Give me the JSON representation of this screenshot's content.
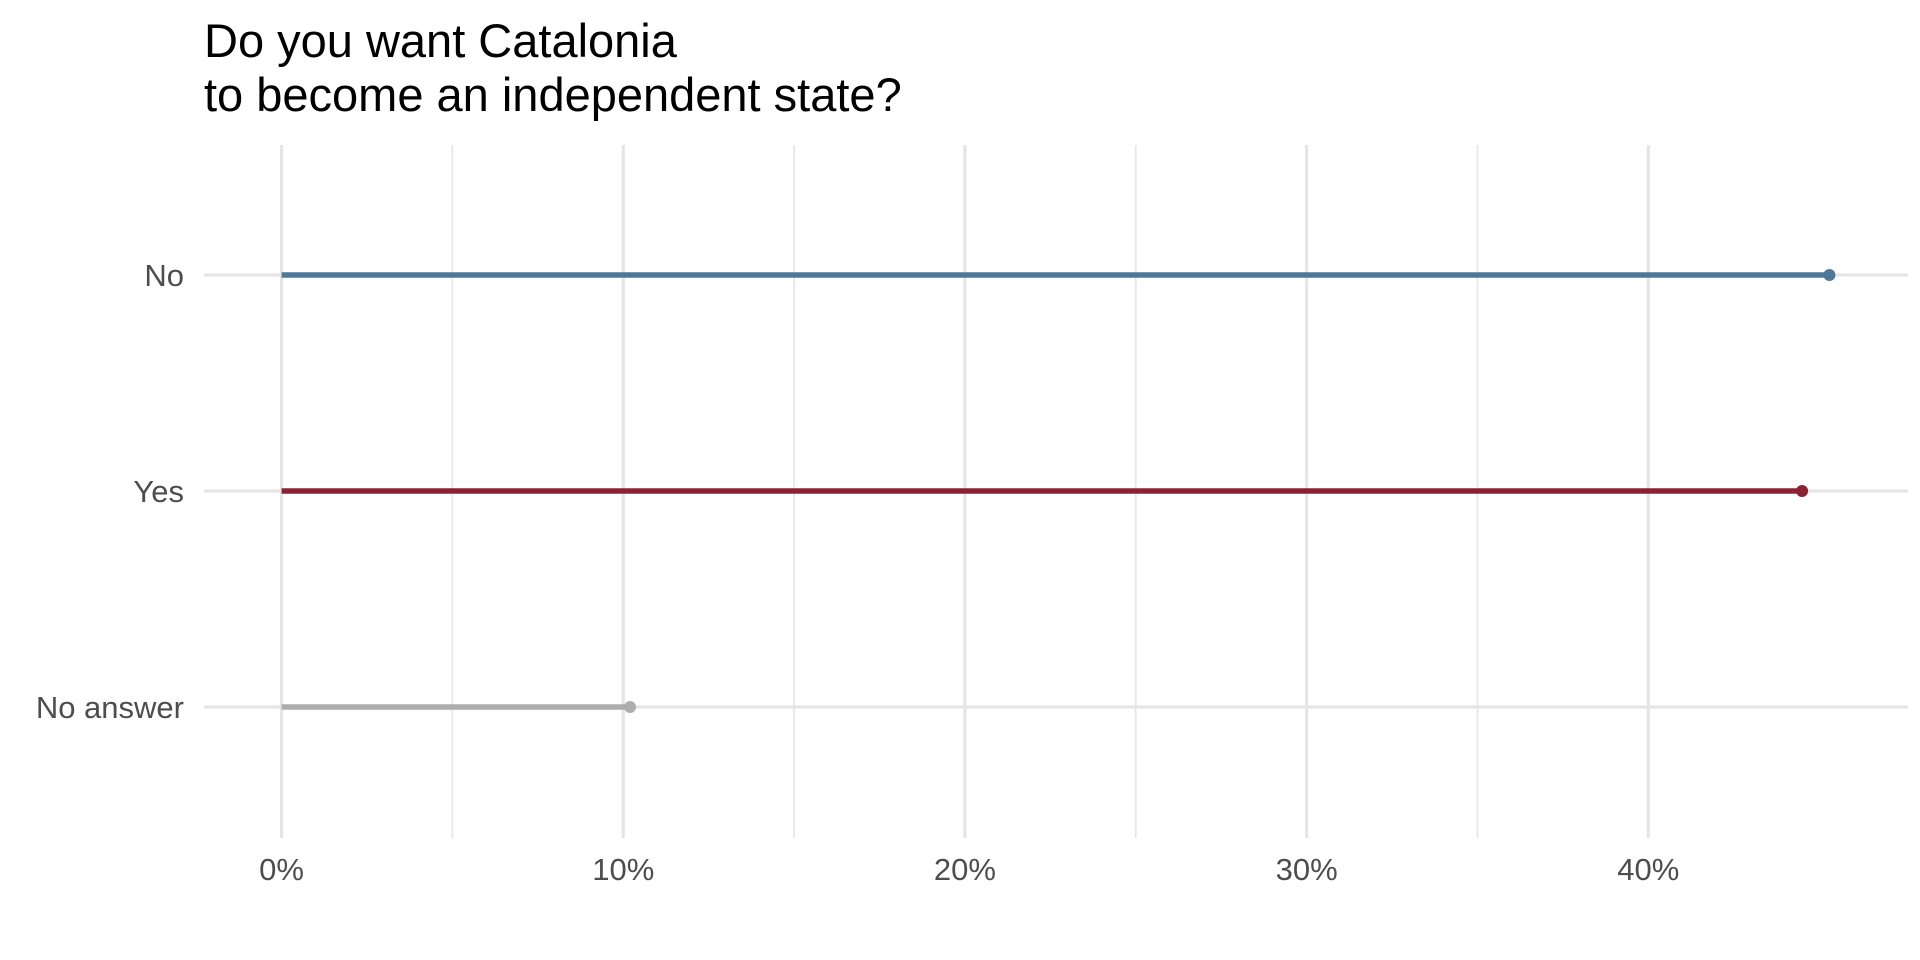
{
  "chart_data": {
    "type": "lollipop",
    "title_lines": [
      "Do you want Catalonia",
      "to become an independent state?"
    ],
    "xlabel": "",
    "ylabel": "",
    "x_ticks": [
      0,
      10,
      20,
      30,
      40
    ],
    "x_tick_labels": [
      "0%",
      "10%",
      "20%",
      "30%",
      "40%"
    ],
    "x_minor_ticks": [
      5,
      15,
      25,
      35
    ],
    "xlim": [
      -2.27,
      47.6
    ],
    "grid": true,
    "legend": "none",
    "categories": [
      "No",
      "Yes",
      "No answer"
    ],
    "values": [
      45.3,
      44.5,
      10.2
    ],
    "colors": [
      "#4e7899",
      "#8b2232",
      "#adadad"
    ],
    "grid_color": "#e5e5e5"
  }
}
